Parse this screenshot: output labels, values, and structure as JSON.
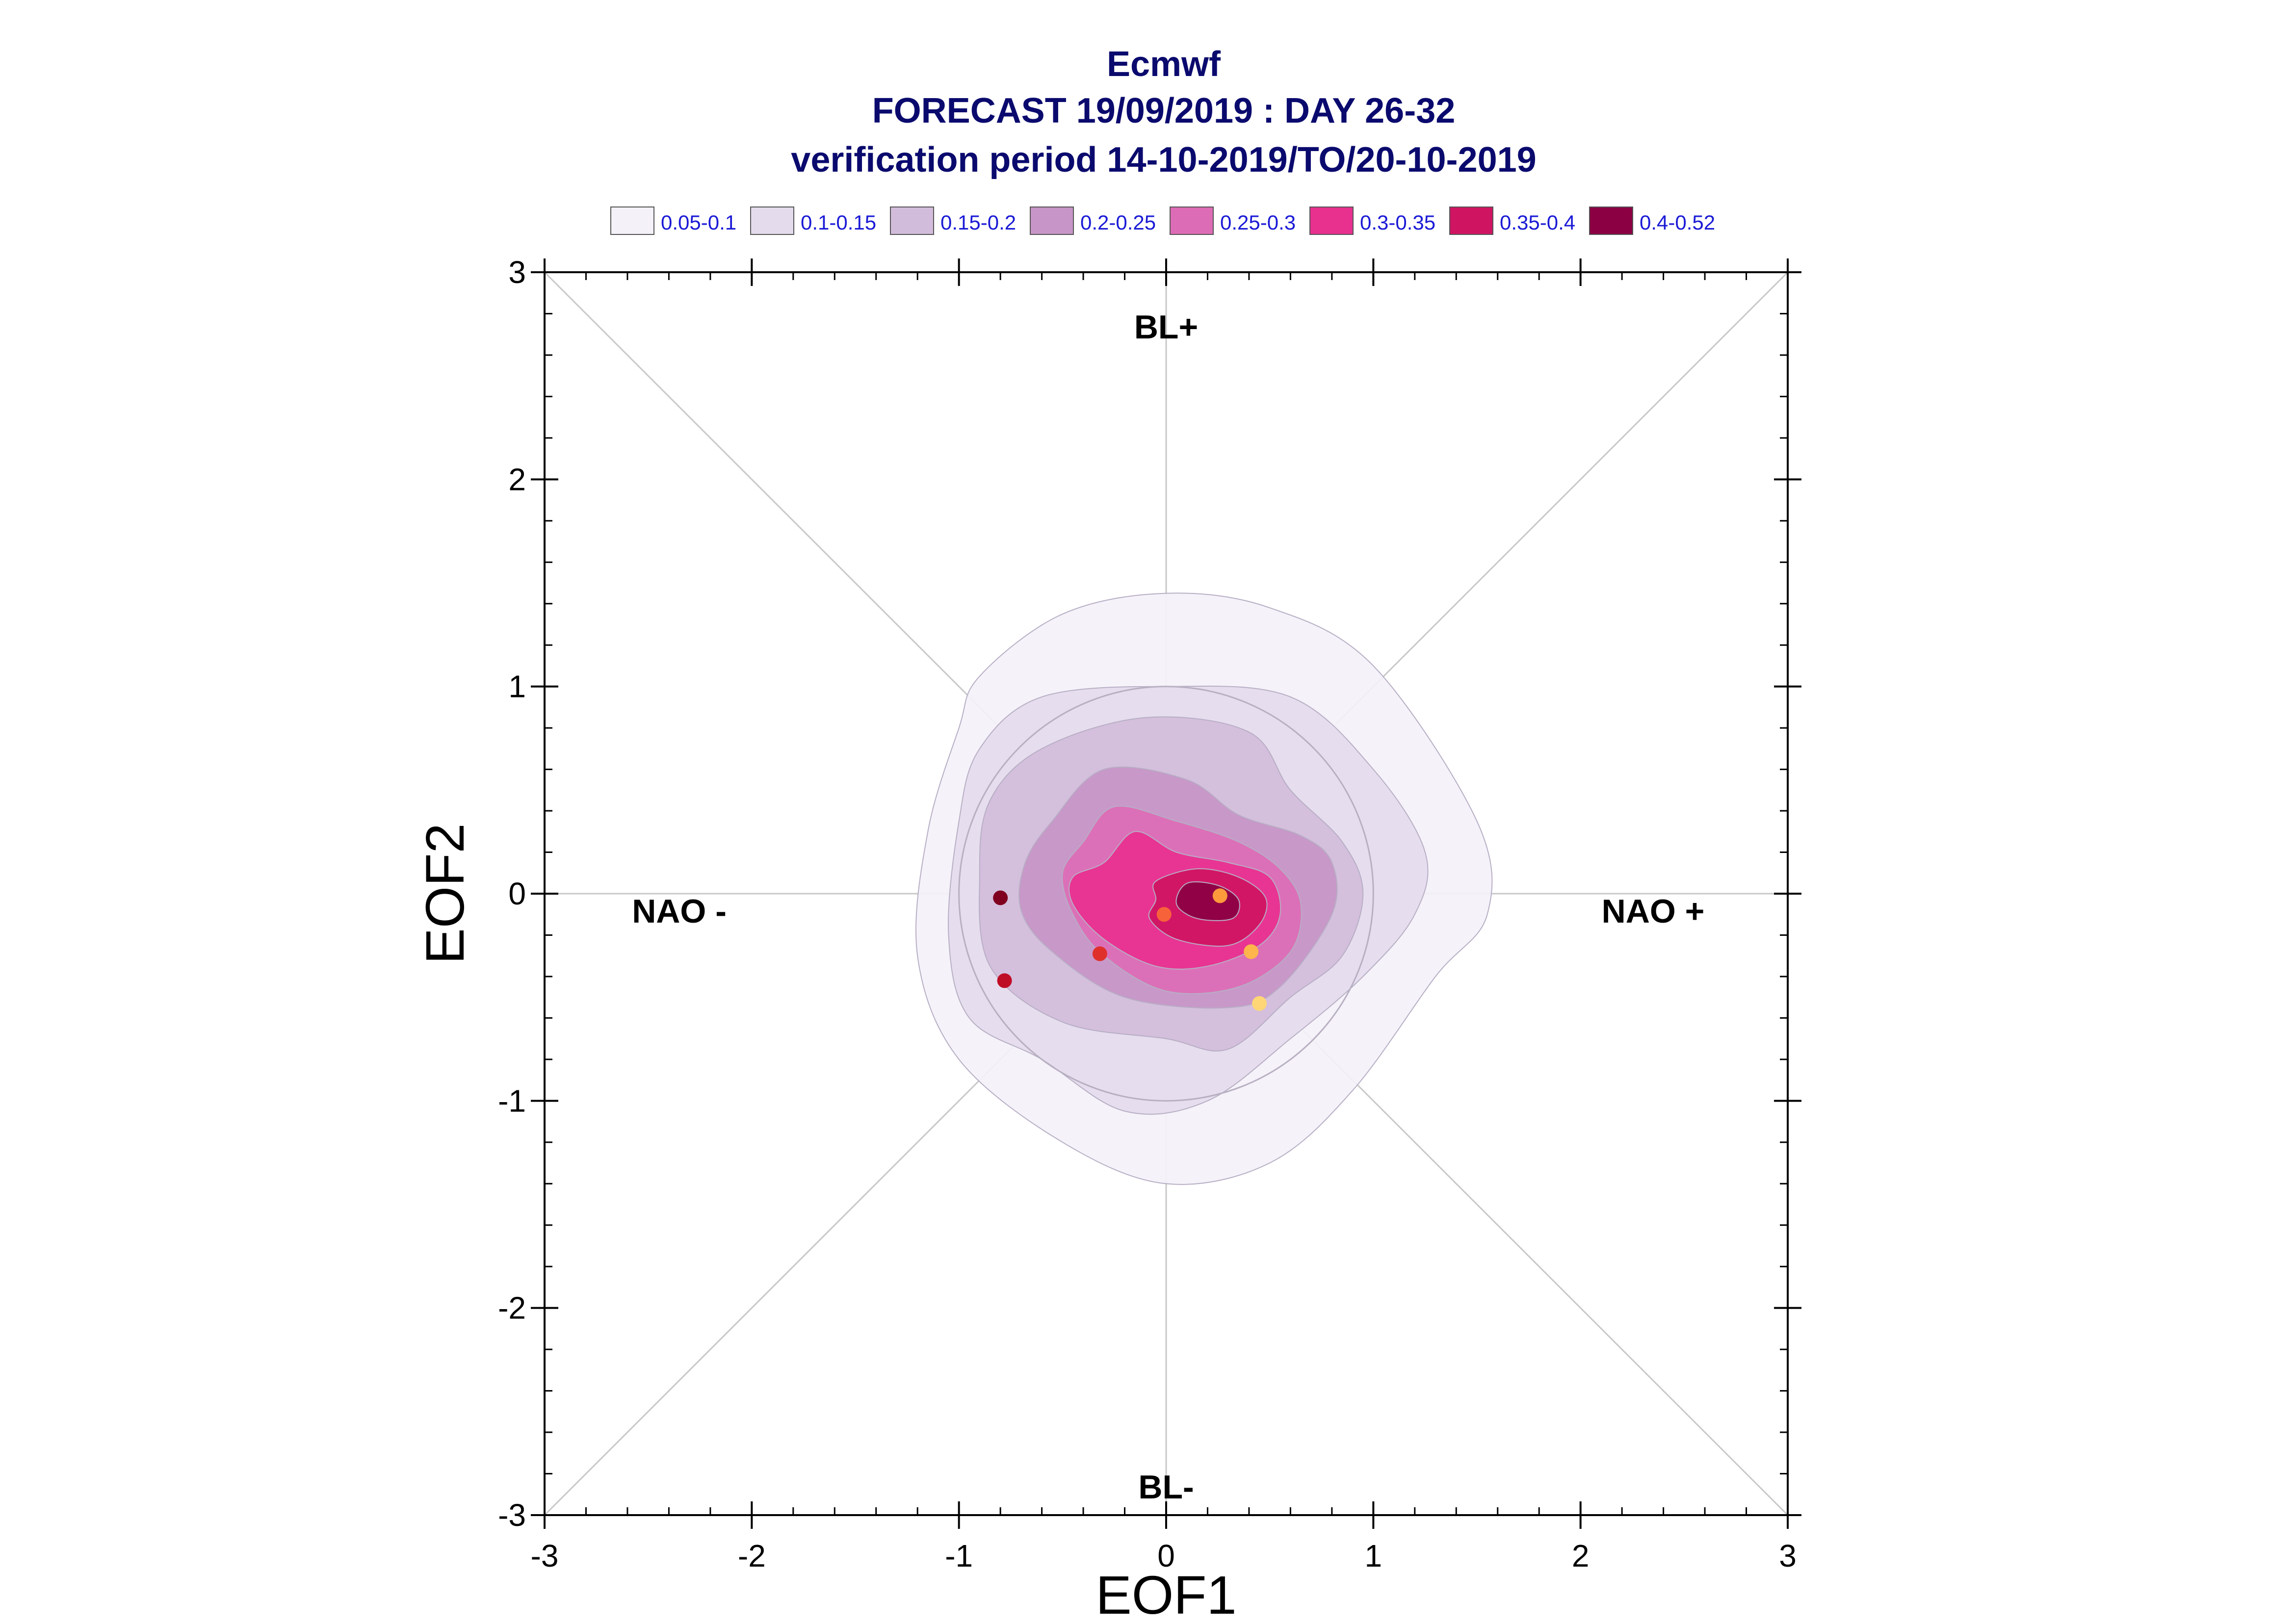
{
  "chart_data": {
    "type": "scatter",
    "title_lines": [
      "Ecmwf",
      "FORECAST 19/09/2019 : DAY 26-32",
      "verification period 14-10-2019/TO/20-10-2019"
    ],
    "xlabel": "EOF1",
    "ylabel": "EOF2",
    "xlim": [
      -3,
      3
    ],
    "ylim": [
      -3,
      3
    ],
    "xticks": [
      -3,
      -2,
      -1,
      0,
      1,
      2,
      3
    ],
    "yticks": [
      -3,
      -2,
      -1,
      0,
      1,
      2,
      3
    ],
    "grid": false,
    "legend_position": "top",
    "legend": [
      {
        "label": "0.05-0.1",
        "color": "#f4f1f8"
      },
      {
        "label": "0.1-0.15",
        "color": "#e4dced"
      },
      {
        "label": "0.15-0.2",
        "color": "#d2bcdb"
      },
      {
        "label": "0.2-0.25",
        "color": "#c795c7"
      },
      {
        "label": "0.25-0.3",
        "color": "#dd6cb6"
      },
      {
        "label": "0.3-0.35",
        "color": "#e8308f"
      },
      {
        "label": "0.35-0.4",
        "color": "#cf1462"
      },
      {
        "label": "0.4-0.52",
        "color": "#8b0043"
      }
    ],
    "regime_labels": {
      "top": "BL+",
      "bottom": "BL-",
      "left": "NAO -",
      "right": "NAO +"
    },
    "reference_circle_radius": 1,
    "density_contours": [
      {
        "level": "0.05-0.1",
        "color": "#f4f1f8",
        "x": [
          -0.5,
          0.0,
          0.5,
          1.0,
          1.5,
          1.55,
          1.3,
          0.9,
          0.5,
          0.0,
          -0.5,
          -1.0,
          -1.2,
          -1.15,
          -1.0,
          -0.9
        ],
        "y": [
          1.35,
          1.45,
          1.38,
          1.1,
          0.35,
          -0.1,
          -0.4,
          -0.95,
          -1.3,
          -1.4,
          -1.2,
          -0.8,
          -0.3,
          0.3,
          0.8,
          1.05
        ]
      },
      {
        "level": "0.1-0.15",
        "color": "#e4dced",
        "x": [
          -0.6,
          0.0,
          0.6,
          1.0,
          1.25,
          1.2,
          0.95,
          0.6,
          0.2,
          -0.2,
          -0.6,
          -0.95,
          -1.05,
          -1.0,
          -0.9
        ],
        "y": [
          0.95,
          1.0,
          0.95,
          0.6,
          0.2,
          -0.1,
          -0.4,
          -0.7,
          -1.0,
          -1.05,
          -0.8,
          -0.6,
          -0.2,
          0.35,
          0.7
        ]
      },
      {
        "level": "0.15-0.2",
        "color": "#d2bcdb",
        "x": [
          -0.6,
          -0.1,
          0.4,
          0.6,
          0.85,
          0.95,
          0.85,
          0.6,
          0.3,
          0.0,
          -0.5,
          -0.85,
          -0.9,
          -0.85
        ],
        "y": [
          0.7,
          0.85,
          0.78,
          0.5,
          0.25,
          0.0,
          -0.3,
          -0.5,
          -0.75,
          -0.7,
          -0.62,
          -0.35,
          0.1,
          0.45
        ]
      },
      {
        "level": "0.2-0.25",
        "color": "#c795c7",
        "x": [
          -0.55,
          -0.3,
          0.1,
          0.35,
          0.65,
          0.8,
          0.8,
          0.55,
          0.3,
          -0.2,
          -0.55,
          -0.7,
          -0.68
        ],
        "y": [
          0.35,
          0.6,
          0.55,
          0.38,
          0.28,
          0.15,
          -0.1,
          -0.45,
          -0.55,
          -0.5,
          -0.28,
          -0.08,
          0.15
        ]
      },
      {
        "level": "0.25-0.3",
        "color": "#dd6cb6",
        "x": [
          -0.4,
          -0.25,
          0.05,
          0.35,
          0.55,
          0.65,
          0.6,
          0.35,
          0.0,
          -0.3,
          -0.45,
          -0.5
        ],
        "y": [
          0.25,
          0.42,
          0.35,
          0.25,
          0.12,
          -0.05,
          -0.28,
          -0.45,
          -0.47,
          -0.3,
          -0.1,
          0.1
        ]
      },
      {
        "level": "0.3-0.35",
        "color": "#e8308f",
        "x": [
          -0.3,
          -0.15,
          0.05,
          0.3,
          0.5,
          0.55,
          0.45,
          0.2,
          -0.05,
          -0.3,
          -0.45,
          -0.45
        ],
        "y": [
          0.15,
          0.3,
          0.2,
          0.15,
          0.08,
          -0.1,
          -0.25,
          -0.35,
          -0.35,
          -0.22,
          -0.05,
          0.08
        ]
      },
      {
        "level": "0.35-0.4",
        "color": "#cf1462",
        "x": [
          -0.05,
          0.15,
          0.35,
          0.48,
          0.45,
          0.3,
          0.05,
          -0.08,
          -0.05
        ],
        "y": [
          0.06,
          0.12,
          0.08,
          -0.02,
          -0.15,
          -0.25,
          -0.22,
          -0.12,
          -0.03
        ]
      },
      {
        "level": "0.4-0.52",
        "color": "#8b0043",
        "x": [
          0.1,
          0.25,
          0.35,
          0.32,
          0.15,
          0.05
        ],
        "y": [
          0.05,
          0.04,
          -0.03,
          -0.12,
          -0.12,
          -0.05
        ]
      }
    ],
    "points": [
      {
        "x": -0.8,
        "y": -0.02,
        "color": "#800020"
      },
      {
        "x": -0.78,
        "y": -0.42,
        "color": "#c00d26"
      },
      {
        "x": -0.32,
        "y": -0.29,
        "color": "#e0302c"
      },
      {
        "x": -0.01,
        "y": -0.1,
        "color": "#f8623a"
      },
      {
        "x": 0.26,
        "y": -0.01,
        "color": "#fc9a3c"
      },
      {
        "x": 0.41,
        "y": -0.28,
        "color": "#fdb54c"
      },
      {
        "x": 0.45,
        "y": -0.53,
        "color": "#fed676"
      }
    ]
  }
}
